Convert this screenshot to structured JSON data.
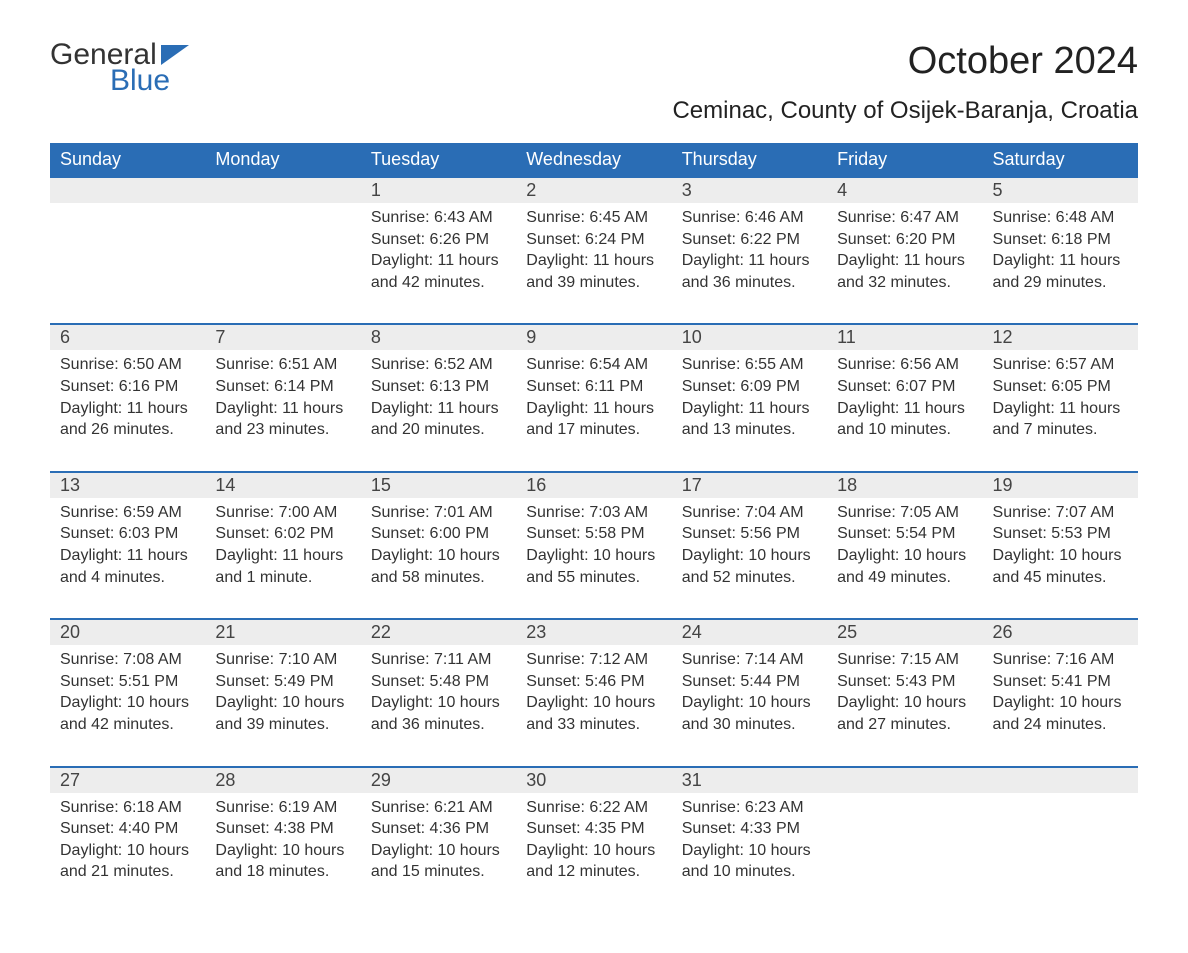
{
  "logo": {
    "text_top": "General",
    "text_bottom": "Blue",
    "flag_color": "#2a6db5",
    "text_color_top": "#333333"
  },
  "title": "October 2024",
  "location": "Ceminac, County of Osijek-Baranja, Croatia",
  "colors": {
    "header_bg": "#2a6db5",
    "header_text": "#ffffff",
    "daynum_bg": "#ededed",
    "row_border": "#2a6db5",
    "body_text": "#333333",
    "background": "#ffffff"
  },
  "typography": {
    "title_size_pt": 28,
    "location_size_pt": 18,
    "header_size_pt": 14,
    "cell_size_pt": 12
  },
  "days_of_week": [
    "Sunday",
    "Monday",
    "Tuesday",
    "Wednesday",
    "Thursday",
    "Friday",
    "Saturday"
  ],
  "weeks": [
    [
      {
        "day": "",
        "sunrise": "",
        "sunset": "",
        "daylight": ""
      },
      {
        "day": "",
        "sunrise": "",
        "sunset": "",
        "daylight": ""
      },
      {
        "day": "1",
        "sunrise": "Sunrise: 6:43 AM",
        "sunset": "Sunset: 6:26 PM",
        "daylight": "Daylight: 11 hours and 42 minutes."
      },
      {
        "day": "2",
        "sunrise": "Sunrise: 6:45 AM",
        "sunset": "Sunset: 6:24 PM",
        "daylight": "Daylight: 11 hours and 39 minutes."
      },
      {
        "day": "3",
        "sunrise": "Sunrise: 6:46 AM",
        "sunset": "Sunset: 6:22 PM",
        "daylight": "Daylight: 11 hours and 36 minutes."
      },
      {
        "day": "4",
        "sunrise": "Sunrise: 6:47 AM",
        "sunset": "Sunset: 6:20 PM",
        "daylight": "Daylight: 11 hours and 32 minutes."
      },
      {
        "day": "5",
        "sunrise": "Sunrise: 6:48 AM",
        "sunset": "Sunset: 6:18 PM",
        "daylight": "Daylight: 11 hours and 29 minutes."
      }
    ],
    [
      {
        "day": "6",
        "sunrise": "Sunrise: 6:50 AM",
        "sunset": "Sunset: 6:16 PM",
        "daylight": "Daylight: 11 hours and 26 minutes."
      },
      {
        "day": "7",
        "sunrise": "Sunrise: 6:51 AM",
        "sunset": "Sunset: 6:14 PM",
        "daylight": "Daylight: 11 hours and 23 minutes."
      },
      {
        "day": "8",
        "sunrise": "Sunrise: 6:52 AM",
        "sunset": "Sunset: 6:13 PM",
        "daylight": "Daylight: 11 hours and 20 minutes."
      },
      {
        "day": "9",
        "sunrise": "Sunrise: 6:54 AM",
        "sunset": "Sunset: 6:11 PM",
        "daylight": "Daylight: 11 hours and 17 minutes."
      },
      {
        "day": "10",
        "sunrise": "Sunrise: 6:55 AM",
        "sunset": "Sunset: 6:09 PM",
        "daylight": "Daylight: 11 hours and 13 minutes."
      },
      {
        "day": "11",
        "sunrise": "Sunrise: 6:56 AM",
        "sunset": "Sunset: 6:07 PM",
        "daylight": "Daylight: 11 hours and 10 minutes."
      },
      {
        "day": "12",
        "sunrise": "Sunrise: 6:57 AM",
        "sunset": "Sunset: 6:05 PM",
        "daylight": "Daylight: 11 hours and 7 minutes."
      }
    ],
    [
      {
        "day": "13",
        "sunrise": "Sunrise: 6:59 AM",
        "sunset": "Sunset: 6:03 PM",
        "daylight": "Daylight: 11 hours and 4 minutes."
      },
      {
        "day": "14",
        "sunrise": "Sunrise: 7:00 AM",
        "sunset": "Sunset: 6:02 PM",
        "daylight": "Daylight: 11 hours and 1 minute."
      },
      {
        "day": "15",
        "sunrise": "Sunrise: 7:01 AM",
        "sunset": "Sunset: 6:00 PM",
        "daylight": "Daylight: 10 hours and 58 minutes."
      },
      {
        "day": "16",
        "sunrise": "Sunrise: 7:03 AM",
        "sunset": "Sunset: 5:58 PM",
        "daylight": "Daylight: 10 hours and 55 minutes."
      },
      {
        "day": "17",
        "sunrise": "Sunrise: 7:04 AM",
        "sunset": "Sunset: 5:56 PM",
        "daylight": "Daylight: 10 hours and 52 minutes."
      },
      {
        "day": "18",
        "sunrise": "Sunrise: 7:05 AM",
        "sunset": "Sunset: 5:54 PM",
        "daylight": "Daylight: 10 hours and 49 minutes."
      },
      {
        "day": "19",
        "sunrise": "Sunrise: 7:07 AM",
        "sunset": "Sunset: 5:53 PM",
        "daylight": "Daylight: 10 hours and 45 minutes."
      }
    ],
    [
      {
        "day": "20",
        "sunrise": "Sunrise: 7:08 AM",
        "sunset": "Sunset: 5:51 PM",
        "daylight": "Daylight: 10 hours and 42 minutes."
      },
      {
        "day": "21",
        "sunrise": "Sunrise: 7:10 AM",
        "sunset": "Sunset: 5:49 PM",
        "daylight": "Daylight: 10 hours and 39 minutes."
      },
      {
        "day": "22",
        "sunrise": "Sunrise: 7:11 AM",
        "sunset": "Sunset: 5:48 PM",
        "daylight": "Daylight: 10 hours and 36 minutes."
      },
      {
        "day": "23",
        "sunrise": "Sunrise: 7:12 AM",
        "sunset": "Sunset: 5:46 PM",
        "daylight": "Daylight: 10 hours and 33 minutes."
      },
      {
        "day": "24",
        "sunrise": "Sunrise: 7:14 AM",
        "sunset": "Sunset: 5:44 PM",
        "daylight": "Daylight: 10 hours and 30 minutes."
      },
      {
        "day": "25",
        "sunrise": "Sunrise: 7:15 AM",
        "sunset": "Sunset: 5:43 PM",
        "daylight": "Daylight: 10 hours and 27 minutes."
      },
      {
        "day": "26",
        "sunrise": "Sunrise: 7:16 AM",
        "sunset": "Sunset: 5:41 PM",
        "daylight": "Daylight: 10 hours and 24 minutes."
      }
    ],
    [
      {
        "day": "27",
        "sunrise": "Sunrise: 6:18 AM",
        "sunset": "Sunset: 4:40 PM",
        "daylight": "Daylight: 10 hours and 21 minutes."
      },
      {
        "day": "28",
        "sunrise": "Sunrise: 6:19 AM",
        "sunset": "Sunset: 4:38 PM",
        "daylight": "Daylight: 10 hours and 18 minutes."
      },
      {
        "day": "29",
        "sunrise": "Sunrise: 6:21 AM",
        "sunset": "Sunset: 4:36 PM",
        "daylight": "Daylight: 10 hours and 15 minutes."
      },
      {
        "day": "30",
        "sunrise": "Sunrise: 6:22 AM",
        "sunset": "Sunset: 4:35 PM",
        "daylight": "Daylight: 10 hours and 12 minutes."
      },
      {
        "day": "31",
        "sunrise": "Sunrise: 6:23 AM",
        "sunset": "Sunset: 4:33 PM",
        "daylight": "Daylight: 10 hours and 10 minutes."
      },
      {
        "day": "",
        "sunrise": "",
        "sunset": "",
        "daylight": ""
      },
      {
        "day": "",
        "sunrise": "",
        "sunset": "",
        "daylight": ""
      }
    ]
  ]
}
